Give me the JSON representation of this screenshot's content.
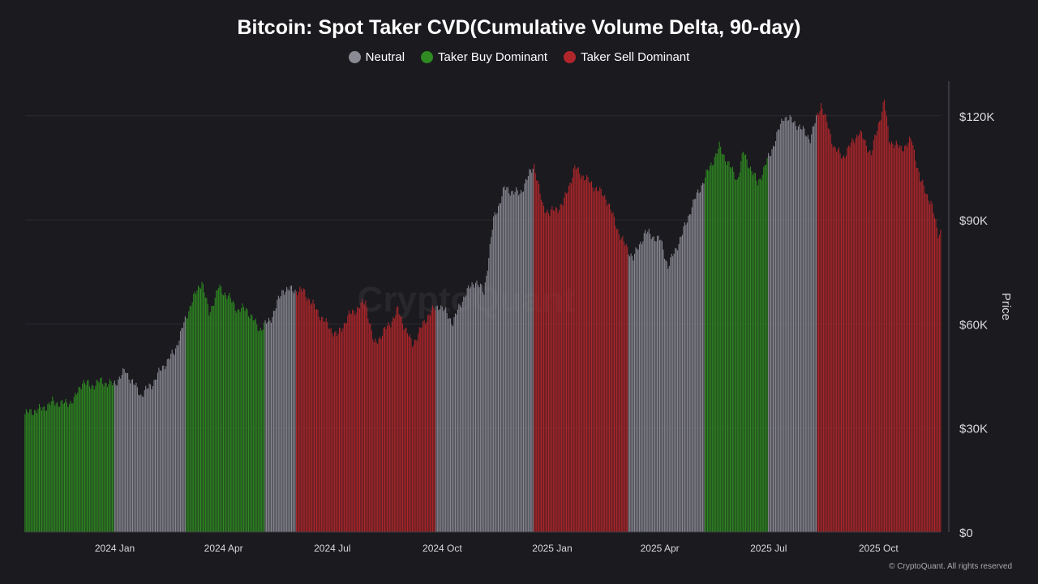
{
  "chart_data": {
    "type": "bar",
    "title": "Bitcoin: Spot Taker CVD(Cumulative Volume Delta, 90-day)",
    "ylabel": "Price",
    "ylim": [
      0,
      130000
    ],
    "y_ticks": [
      {
        "value": 0,
        "label": "$0"
      },
      {
        "value": 30000,
        "label": "$30K"
      },
      {
        "value": 60000,
        "label": "$60K"
      },
      {
        "value": 90000,
        "label": "$90K"
      },
      {
        "value": 120000,
        "label": "$120K"
      }
    ],
    "x_ticks": [
      {
        "date": "2024-01-01",
        "label": "2024 Jan"
      },
      {
        "date": "2024-04-01",
        "label": "2024 Apr"
      },
      {
        "date": "2024-07-01",
        "label": "2024 Jul"
      },
      {
        "date": "2024-10-01",
        "label": "2024 Oct"
      },
      {
        "date": "2025-01-01",
        "label": "2025 Jan"
      },
      {
        "date": "2025-04-01",
        "label": "2025 Apr"
      },
      {
        "date": "2025-07-01",
        "label": "2025 Jul"
      },
      {
        "date": "2025-10-01",
        "label": "2025 Oct"
      }
    ],
    "x_range": [
      "2023-10-18",
      "2025-11-22"
    ],
    "grid": true,
    "legend_position": "top-center",
    "series": [
      {
        "name": "Neutral",
        "color": "#8a8a94"
      },
      {
        "name": "Taker Buy Dominant",
        "color": "#2f8a22"
      },
      {
        "name": "Taker Sell Dominant",
        "color": "#b0272b"
      }
    ],
    "price_points": [
      [
        "2023-10-18",
        34000
      ],
      [
        "2023-10-25",
        35000
      ],
      [
        "2023-11-01",
        35500
      ],
      [
        "2023-11-10",
        37500
      ],
      [
        "2023-11-20",
        37000
      ],
      [
        "2023-11-28",
        38000
      ],
      [
        "2023-12-05",
        43500
      ],
      [
        "2023-12-12",
        42000
      ],
      [
        "2023-12-20",
        43500
      ],
      [
        "2023-12-31",
        42500
      ],
      [
        "2024-01-10",
        46500
      ],
      [
        "2024-01-23",
        39500
      ],
      [
        "2024-02-01",
        42500
      ],
      [
        "2024-02-10",
        47500
      ],
      [
        "2024-02-20",
        52000
      ],
      [
        "2024-02-28",
        60000
      ],
      [
        "2024-03-05",
        66000
      ],
      [
        "2024-03-14",
        72500
      ],
      [
        "2024-03-20",
        63000
      ],
      [
        "2024-03-28",
        70500
      ],
      [
        "2024-04-05",
        68000
      ],
      [
        "2024-04-13",
        64000
      ],
      [
        "2024-04-20",
        64500
      ],
      [
        "2024-05-01",
        58500
      ],
      [
        "2024-05-10",
        61000
      ],
      [
        "2024-05-21",
        70000
      ],
      [
        "2024-06-07",
        69500
      ],
      [
        "2024-06-24",
        61000
      ],
      [
        "2024-07-05",
        56500
      ],
      [
        "2024-07-15",
        62500
      ],
      [
        "2024-07-29",
        66500
      ],
      [
        "2024-08-05",
        54000
      ],
      [
        "2024-08-20",
        61000
      ],
      [
        "2024-08-25",
        64000
      ],
      [
        "2024-09-06",
        54000
      ],
      [
        "2024-09-20",
        63000
      ],
      [
        "2024-09-29",
        65500
      ],
      [
        "2024-10-10",
        60500
      ],
      [
        "2024-10-20",
        68500
      ],
      [
        "2024-10-29",
        72500
      ],
      [
        "2024-11-05",
        69000
      ],
      [
        "2024-11-13",
        90000
      ],
      [
        "2024-11-22",
        99000
      ],
      [
        "2024-12-05",
        97500
      ],
      [
        "2024-12-17",
        106000
      ],
      [
        "2024-12-24",
        94000
      ],
      [
        "2024-12-30",
        92000
      ],
      [
        "2025-01-10",
        94500
      ],
      [
        "2025-01-20",
        105000
      ],
      [
        "2025-02-01",
        101000
      ],
      [
        "2025-02-15",
        96500
      ],
      [
        "2025-02-28",
        84500
      ],
      [
        "2025-03-10",
        79000
      ],
      [
        "2025-03-20",
        86500
      ],
      [
        "2025-04-02",
        84000
      ],
      [
        "2025-04-08",
        76500
      ],
      [
        "2025-04-20",
        86000
      ],
      [
        "2025-04-28",
        94000
      ],
      [
        "2025-05-10",
        103000
      ],
      [
        "2025-05-21",
        111000
      ],
      [
        "2025-06-05",
        101500
      ],
      [
        "2025-06-10",
        109500
      ],
      [
        "2025-06-22",
        100500
      ],
      [
        "2025-07-03",
        109500
      ],
      [
        "2025-07-14",
        120000
      ],
      [
        "2025-07-25",
        117500
      ],
      [
        "2025-08-05",
        113500
      ],
      [
        "2025-08-14",
        123500
      ],
      [
        "2025-08-25",
        111000
      ],
      [
        "2025-09-01",
        108000
      ],
      [
        "2025-09-15",
        115500
      ],
      [
        "2025-09-25",
        109000
      ],
      [
        "2025-10-06",
        124500
      ],
      [
        "2025-10-10",
        113000
      ],
      [
        "2025-10-20",
        110500
      ],
      [
        "2025-10-29",
        113000
      ],
      [
        "2025-11-05",
        101500
      ],
      [
        "2025-11-14",
        95000
      ],
      [
        "2025-11-20",
        86000
      ],
      [
        "2025-11-22",
        87000
      ]
    ],
    "regimes": [
      {
        "start": "2023-10-18",
        "end": "2023-12-31",
        "series": "Taker Buy Dominant"
      },
      {
        "start": "2024-01-01",
        "end": "2024-02-28",
        "series": "Neutral"
      },
      {
        "start": "2024-03-01",
        "end": "2024-05-05",
        "series": "Taker Buy Dominant"
      },
      {
        "start": "2024-05-06",
        "end": "2024-05-31",
        "series": "Neutral"
      },
      {
        "start": "2024-06-01",
        "end": "2024-09-25",
        "series": "Taker Sell Dominant"
      },
      {
        "start": "2024-09-26",
        "end": "2024-12-16",
        "series": "Neutral"
      },
      {
        "start": "2024-12-17",
        "end": "2025-03-05",
        "series": "Taker Sell Dominant"
      },
      {
        "start": "2025-03-06",
        "end": "2025-05-08",
        "series": "Neutral"
      },
      {
        "start": "2025-05-09",
        "end": "2025-06-30",
        "series": "Taker Buy Dominant"
      },
      {
        "start": "2025-07-01",
        "end": "2025-08-10",
        "series": "Neutral"
      },
      {
        "start": "2025-08-11",
        "end": "2025-11-22",
        "series": "Taker Sell Dominant"
      }
    ]
  },
  "watermark": "CryptoQuant",
  "copyright": "© CryptoQuant. All rights reserved"
}
